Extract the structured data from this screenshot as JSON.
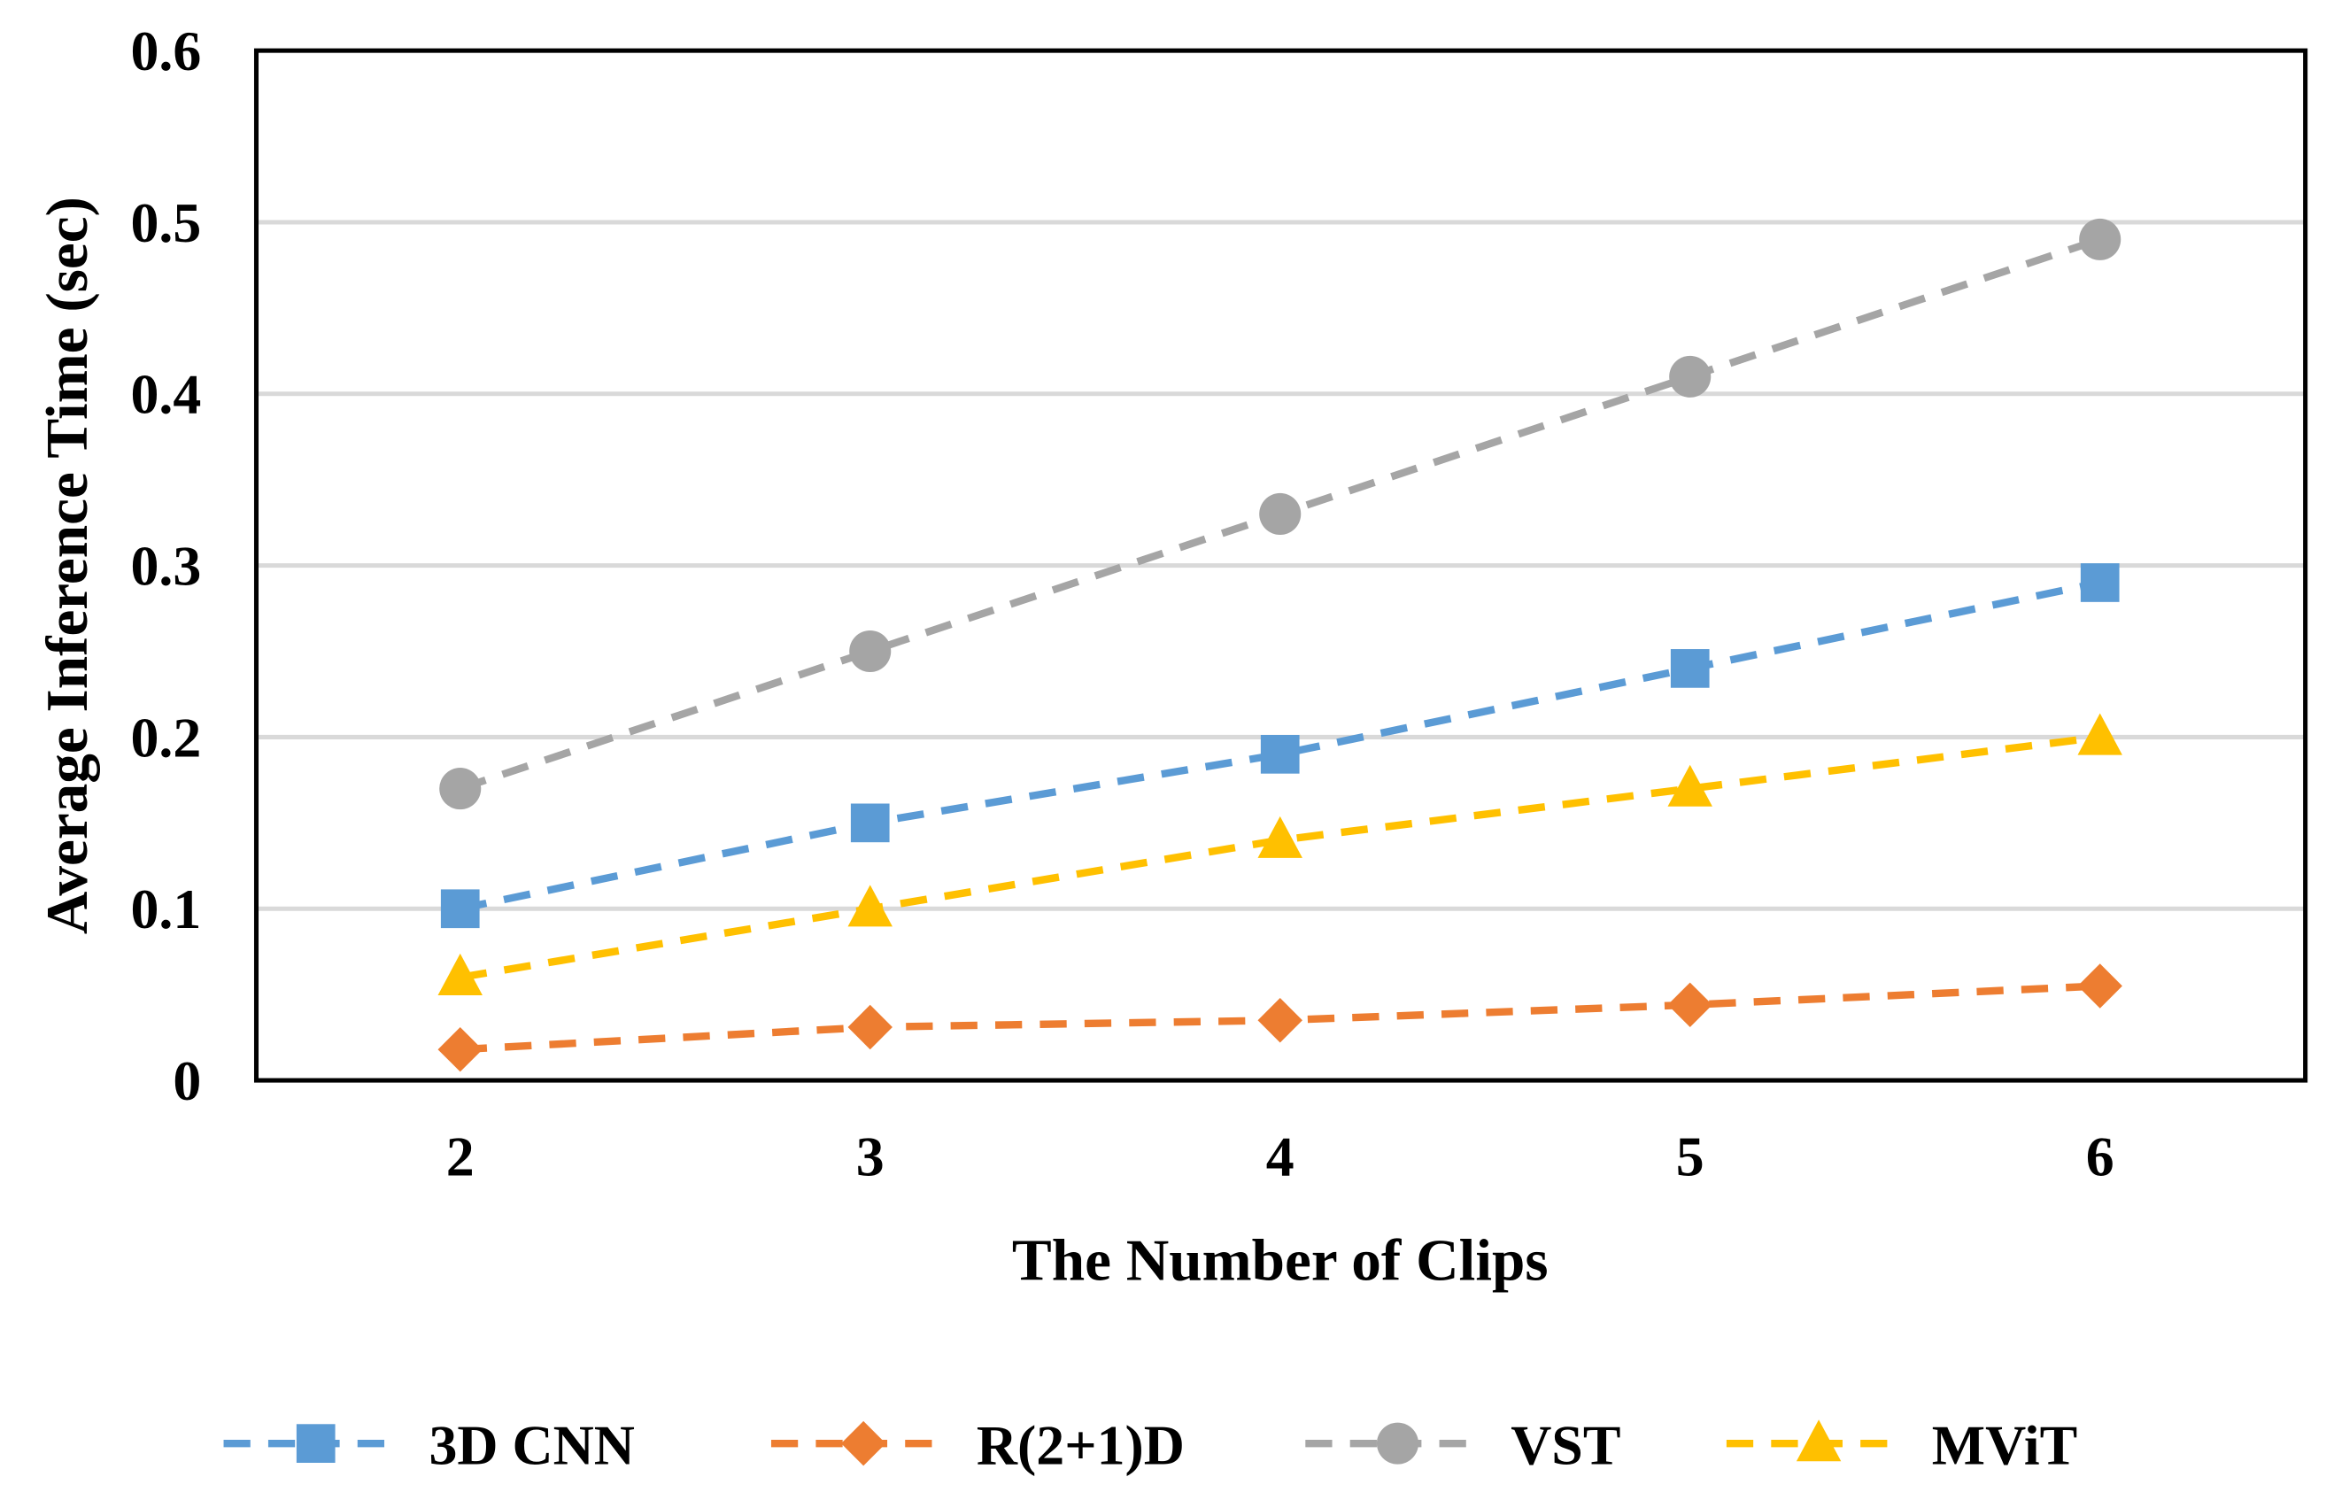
{
  "chart_data": {
    "type": "line",
    "title": "",
    "xlabel": "The Number of Clips",
    "ylabel": "Average Inference Time (sec)",
    "x": [
      2,
      3,
      4,
      5,
      6
    ],
    "x_tick_labels": [
      "2",
      "3",
      "4",
      "5",
      "6"
    ],
    "ylim": [
      0,
      0.6
    ],
    "y_ticks": [
      0,
      0.1,
      0.2,
      0.3,
      0.4,
      0.5,
      0.6
    ],
    "y_tick_labels": [
      "0",
      "0.1",
      "0.2",
      "0.3",
      "0.4",
      "0.5",
      "0.6"
    ],
    "grid": "horizontal",
    "legend_position": "bottom",
    "series": [
      {
        "name": "3D CNN",
        "color": "#5B9BD5",
        "marker": "square",
        "values": [
          0.1,
          0.15,
          0.19,
          0.24,
          0.29
        ]
      },
      {
        "name": "R(2+1)D",
        "color": "#ED7D31",
        "marker": "diamond",
        "values": [
          0.018,
          0.031,
          0.035,
          0.044,
          0.055
        ]
      },
      {
        "name": "VST",
        "color": "#A5A5A5",
        "marker": "circle",
        "values": [
          0.17,
          0.25,
          0.33,
          0.41,
          0.49
        ]
      },
      {
        "name": "MViT",
        "color": "#FFC000",
        "marker": "triangle",
        "values": [
          0.06,
          0.1,
          0.14,
          0.17,
          0.2
        ]
      }
    ]
  }
}
